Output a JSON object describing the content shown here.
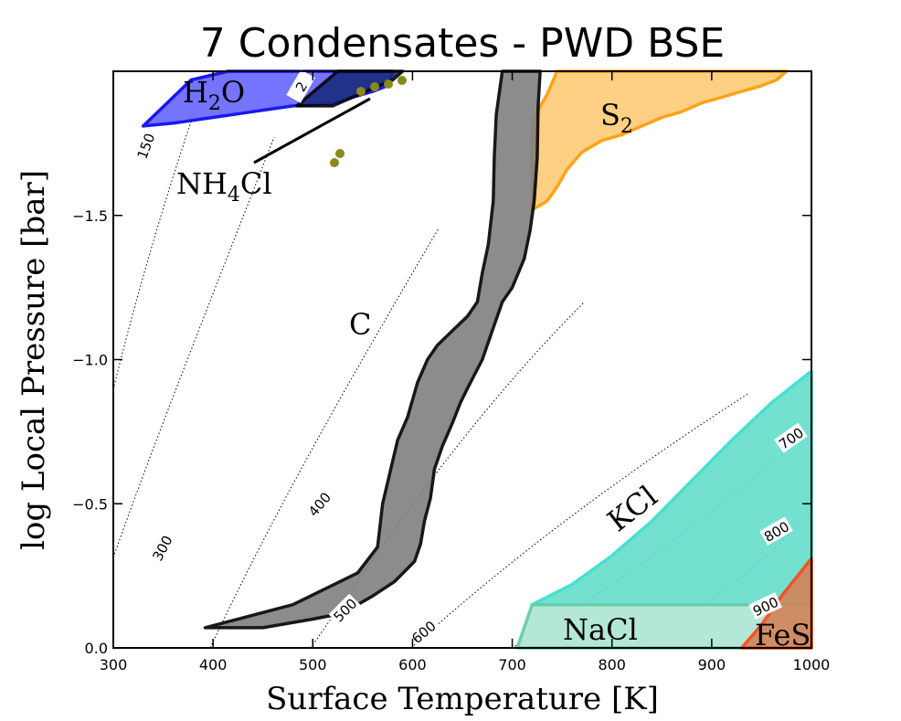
{
  "chart_data": {
    "type": "area",
    "title": "7 Condensates - PWD BSE",
    "xlabel": "Surface Temperature [K]",
    "ylabel": "log Local Pressure [bar]",
    "xlim": [
      300,
      1000
    ],
    "ylim": [
      0.0,
      -2.0
    ],
    "y_axis_inverted": true,
    "x_ticks": [
      300,
      400,
      500,
      600,
      700,
      800,
      900,
      1000
    ],
    "x_tick_labels": [
      "300",
      "400",
      "500",
      "600",
      "700",
      "800",
      "900",
      "1000"
    ],
    "y_ticks": [
      0.0,
      -0.5,
      -1.0,
      -1.5
    ],
    "y_tick_labels": [
      "0.0",
      "−0.5",
      "−1.0",
      "−1.5"
    ],
    "grid": false,
    "legend": "none",
    "contour_labels": [
      {
        "label": "150",
        "value": 150
      },
      {
        "label": "300",
        "value": 300
      },
      {
        "label": "400",
        "value": 400
      },
      {
        "label": "500",
        "value": 500
      },
      {
        "label": "600",
        "value": 600
      },
      {
        "label": "700",
        "value": 700
      },
      {
        "label": "800",
        "value": 800
      },
      {
        "label": "900",
        "value": 900
      },
      {
        "label": "2",
        "value": 2
      }
    ],
    "regions": [
      {
        "name": "H2O",
        "label_main": "H",
        "label_sub": "2",
        "label_end": "O",
        "fill": "#6666ff",
        "stroke": "#0000ee",
        "points": [
          [
            330,
            -1.81
          ],
          [
            378,
            -1.97
          ],
          [
            415,
            -2.0
          ],
          [
            580,
            -2.0
          ],
          [
            575,
            -1.95
          ],
          [
            560,
            -1.93
          ],
          [
            520,
            -1.89
          ],
          [
            480,
            -1.88
          ],
          [
            440,
            -1.86
          ],
          [
            400,
            -1.84
          ],
          [
            360,
            -1.82
          ],
          [
            330,
            -1.81
          ]
        ]
      },
      {
        "name": "NH4Cl",
        "label_main": "NH",
        "label_sub": "4",
        "label_end": "Cl",
        "fill": "#1a2a80",
        "stroke": "#000000",
        "points": [
          [
            484,
            -1.88
          ],
          [
            525,
            -2.0
          ],
          [
            590,
            -2.0
          ],
          [
            580,
            -1.97
          ],
          [
            560,
            -1.94
          ],
          [
            540,
            -1.91
          ],
          [
            520,
            -1.88
          ],
          [
            484,
            -1.88
          ]
        ]
      },
      {
        "name": "S2",
        "label_main": "S",
        "label_sub": "2",
        "label_end": "",
        "fill": "#ffcc77",
        "stroke": "#ff9900",
        "points": [
          [
            720,
            -1.52
          ],
          [
            720,
            -1.83
          ],
          [
            735,
            -1.92
          ],
          [
            745,
            -2.0
          ],
          [
            975,
            -2.0
          ],
          [
            965,
            -1.97
          ],
          [
            950,
            -1.95
          ],
          [
            930,
            -1.93
          ],
          [
            910,
            -1.91
          ],
          [
            890,
            -1.89
          ],
          [
            870,
            -1.86
          ],
          [
            850,
            -1.84
          ],
          [
            830,
            -1.81
          ],
          [
            810,
            -1.78
          ],
          [
            790,
            -1.76
          ],
          [
            770,
            -1.72
          ],
          [
            755,
            -1.66
          ],
          [
            745,
            -1.6
          ],
          [
            735,
            -1.55
          ],
          [
            725,
            -1.53
          ],
          [
            720,
            -1.52
          ]
        ]
      },
      {
        "name": "C",
        "label_main": "C",
        "label_sub": "",
        "label_end": "",
        "fill": "#808080",
        "stroke": "#000000",
        "points": [
          [
            392,
            -0.07
          ],
          [
            480,
            -0.15
          ],
          [
            545,
            -0.26
          ],
          [
            565,
            -0.35
          ],
          [
            570,
            -0.5
          ],
          [
            585,
            -0.72
          ],
          [
            595,
            -0.8
          ],
          [
            605,
            -0.92
          ],
          [
            615,
            -1.0
          ],
          [
            625,
            -1.05
          ],
          [
            640,
            -1.1
          ],
          [
            655,
            -1.15
          ],
          [
            665,
            -1.2
          ],
          [
            670,
            -1.3
          ],
          [
            676,
            -1.4
          ],
          [
            681,
            -1.55
          ],
          [
            682,
            -1.7
          ],
          [
            684,
            -1.85
          ],
          [
            690,
            -2.0
          ],
          [
            728,
            -2.0
          ],
          [
            726,
            -1.88
          ],
          [
            725,
            -1.7
          ],
          [
            722,
            -1.55
          ],
          [
            718,
            -1.45
          ],
          [
            712,
            -1.35
          ],
          [
            700,
            -1.25
          ],
          [
            690,
            -1.2
          ],
          [
            680,
            -1.1
          ],
          [
            670,
            -1.0
          ],
          [
            655,
            -0.9
          ],
          [
            648,
            -0.85
          ],
          [
            640,
            -0.78
          ],
          [
            630,
            -0.7
          ],
          [
            622,
            -0.62
          ],
          [
            618,
            -0.52
          ],
          [
            612,
            -0.44
          ],
          [
            608,
            -0.36
          ],
          [
            602,
            -0.3
          ],
          [
            582,
            -0.23
          ],
          [
            560,
            -0.18
          ],
          [
            530,
            -0.12
          ],
          [
            500,
            -0.1
          ],
          [
            450,
            -0.07
          ],
          [
            392,
            -0.07
          ]
        ]
      },
      {
        "name": "KCl",
        "label_main": "KCl",
        "label_sub": "",
        "label_end": "",
        "fill": "#66ddcc",
        "stroke": "#33ddcc",
        "points": [
          [
            720,
            -0.15
          ],
          [
            760,
            -0.22
          ],
          [
            800,
            -0.32
          ],
          [
            840,
            -0.44
          ],
          [
            880,
            -0.58
          ],
          [
            920,
            -0.72
          ],
          [
            960,
            -0.85
          ],
          [
            1000,
            -0.96
          ],
          [
            1000,
            -0.15
          ],
          [
            720,
            -0.15
          ]
        ]
      },
      {
        "name": "NaCl",
        "label_main": "NaCl",
        "label_sub": "",
        "label_end": "",
        "fill": "#b0e6d6",
        "stroke": "#66ccaa",
        "points": [
          [
            705,
            0.0
          ],
          [
            720,
            -0.15
          ],
          [
            1000,
            -0.15
          ],
          [
            1000,
            0.0
          ],
          [
            705,
            0.0
          ]
        ]
      },
      {
        "name": "FeS",
        "label_main": "FeS",
        "label_sub": "",
        "label_end": "",
        "fill": "#d2845a",
        "stroke": "#ff4411",
        "points": [
          [
            930,
            0.0
          ],
          [
            950,
            -0.08
          ],
          [
            970,
            -0.18
          ],
          [
            1000,
            -0.31
          ],
          [
            1000,
            0.0
          ],
          [
            930,
            0.0
          ]
        ]
      }
    ]
  }
}
